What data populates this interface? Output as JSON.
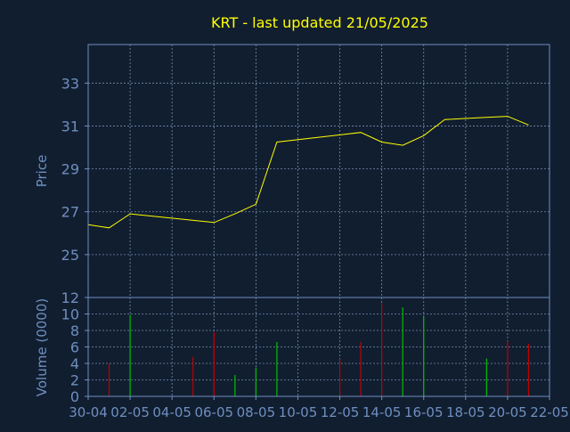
{
  "colors": {
    "background": "#111e30",
    "axis": "#6e8fbf",
    "grid": "#8a9fc4",
    "text": "#6e8fbf",
    "title": "#ffff00",
    "price_line": "#ffff00",
    "volume_up": "#00c000",
    "volume_down": "#c00000"
  },
  "chart_data": [
    {
      "type": "line",
      "title": "KRT - last updated 21/05/2025",
      "ylabel": "Price",
      "xlabel": "",
      "ylim": [
        23.0,
        34.8
      ],
      "yticks": [
        25,
        27,
        29,
        31,
        33
      ],
      "grid": true,
      "x": [
        0,
        1,
        2,
        6,
        7,
        8,
        9,
        13,
        14,
        15,
        16,
        17,
        19,
        20,
        21
      ],
      "series": [
        {
          "values": [
            26.4,
            26.25,
            26.9,
            26.5,
            26.9,
            27.35,
            30.25,
            30.7,
            30.25,
            30.1,
            30.55,
            31.3,
            31.4,
            31.45,
            31.05
          ]
        }
      ]
    },
    {
      "type": "bar",
      "ylabel": "Volume (0000)",
      "ylim": [
        0,
        12
      ],
      "yticks": [
        0,
        2,
        4,
        6,
        8,
        10,
        12
      ],
      "grid": true,
      "categories": [
        "30-04",
        "02-05",
        "04-05",
        "06-05",
        "08-05",
        "10-05",
        "12-05",
        "14-05",
        "16-05",
        "18-05",
        "20-05",
        "22-05"
      ],
      "x": [
        1,
        2,
        5,
        6,
        7,
        8,
        9,
        12,
        13,
        14,
        15,
        16,
        19,
        20,
        21
      ],
      "values": [
        4.0,
        9.9,
        4.8,
        7.8,
        2.6,
        3.5,
        6.6,
        4.5,
        6.6,
        11.3,
        10.8,
        9.7,
        4.6,
        6.7,
        6.4
      ],
      "direction": [
        "down",
        "up",
        "down",
        "down",
        "up",
        "up",
        "up",
        "down",
        "down",
        "down",
        "up",
        "up",
        "up",
        "down",
        "down"
      ]
    }
  ]
}
